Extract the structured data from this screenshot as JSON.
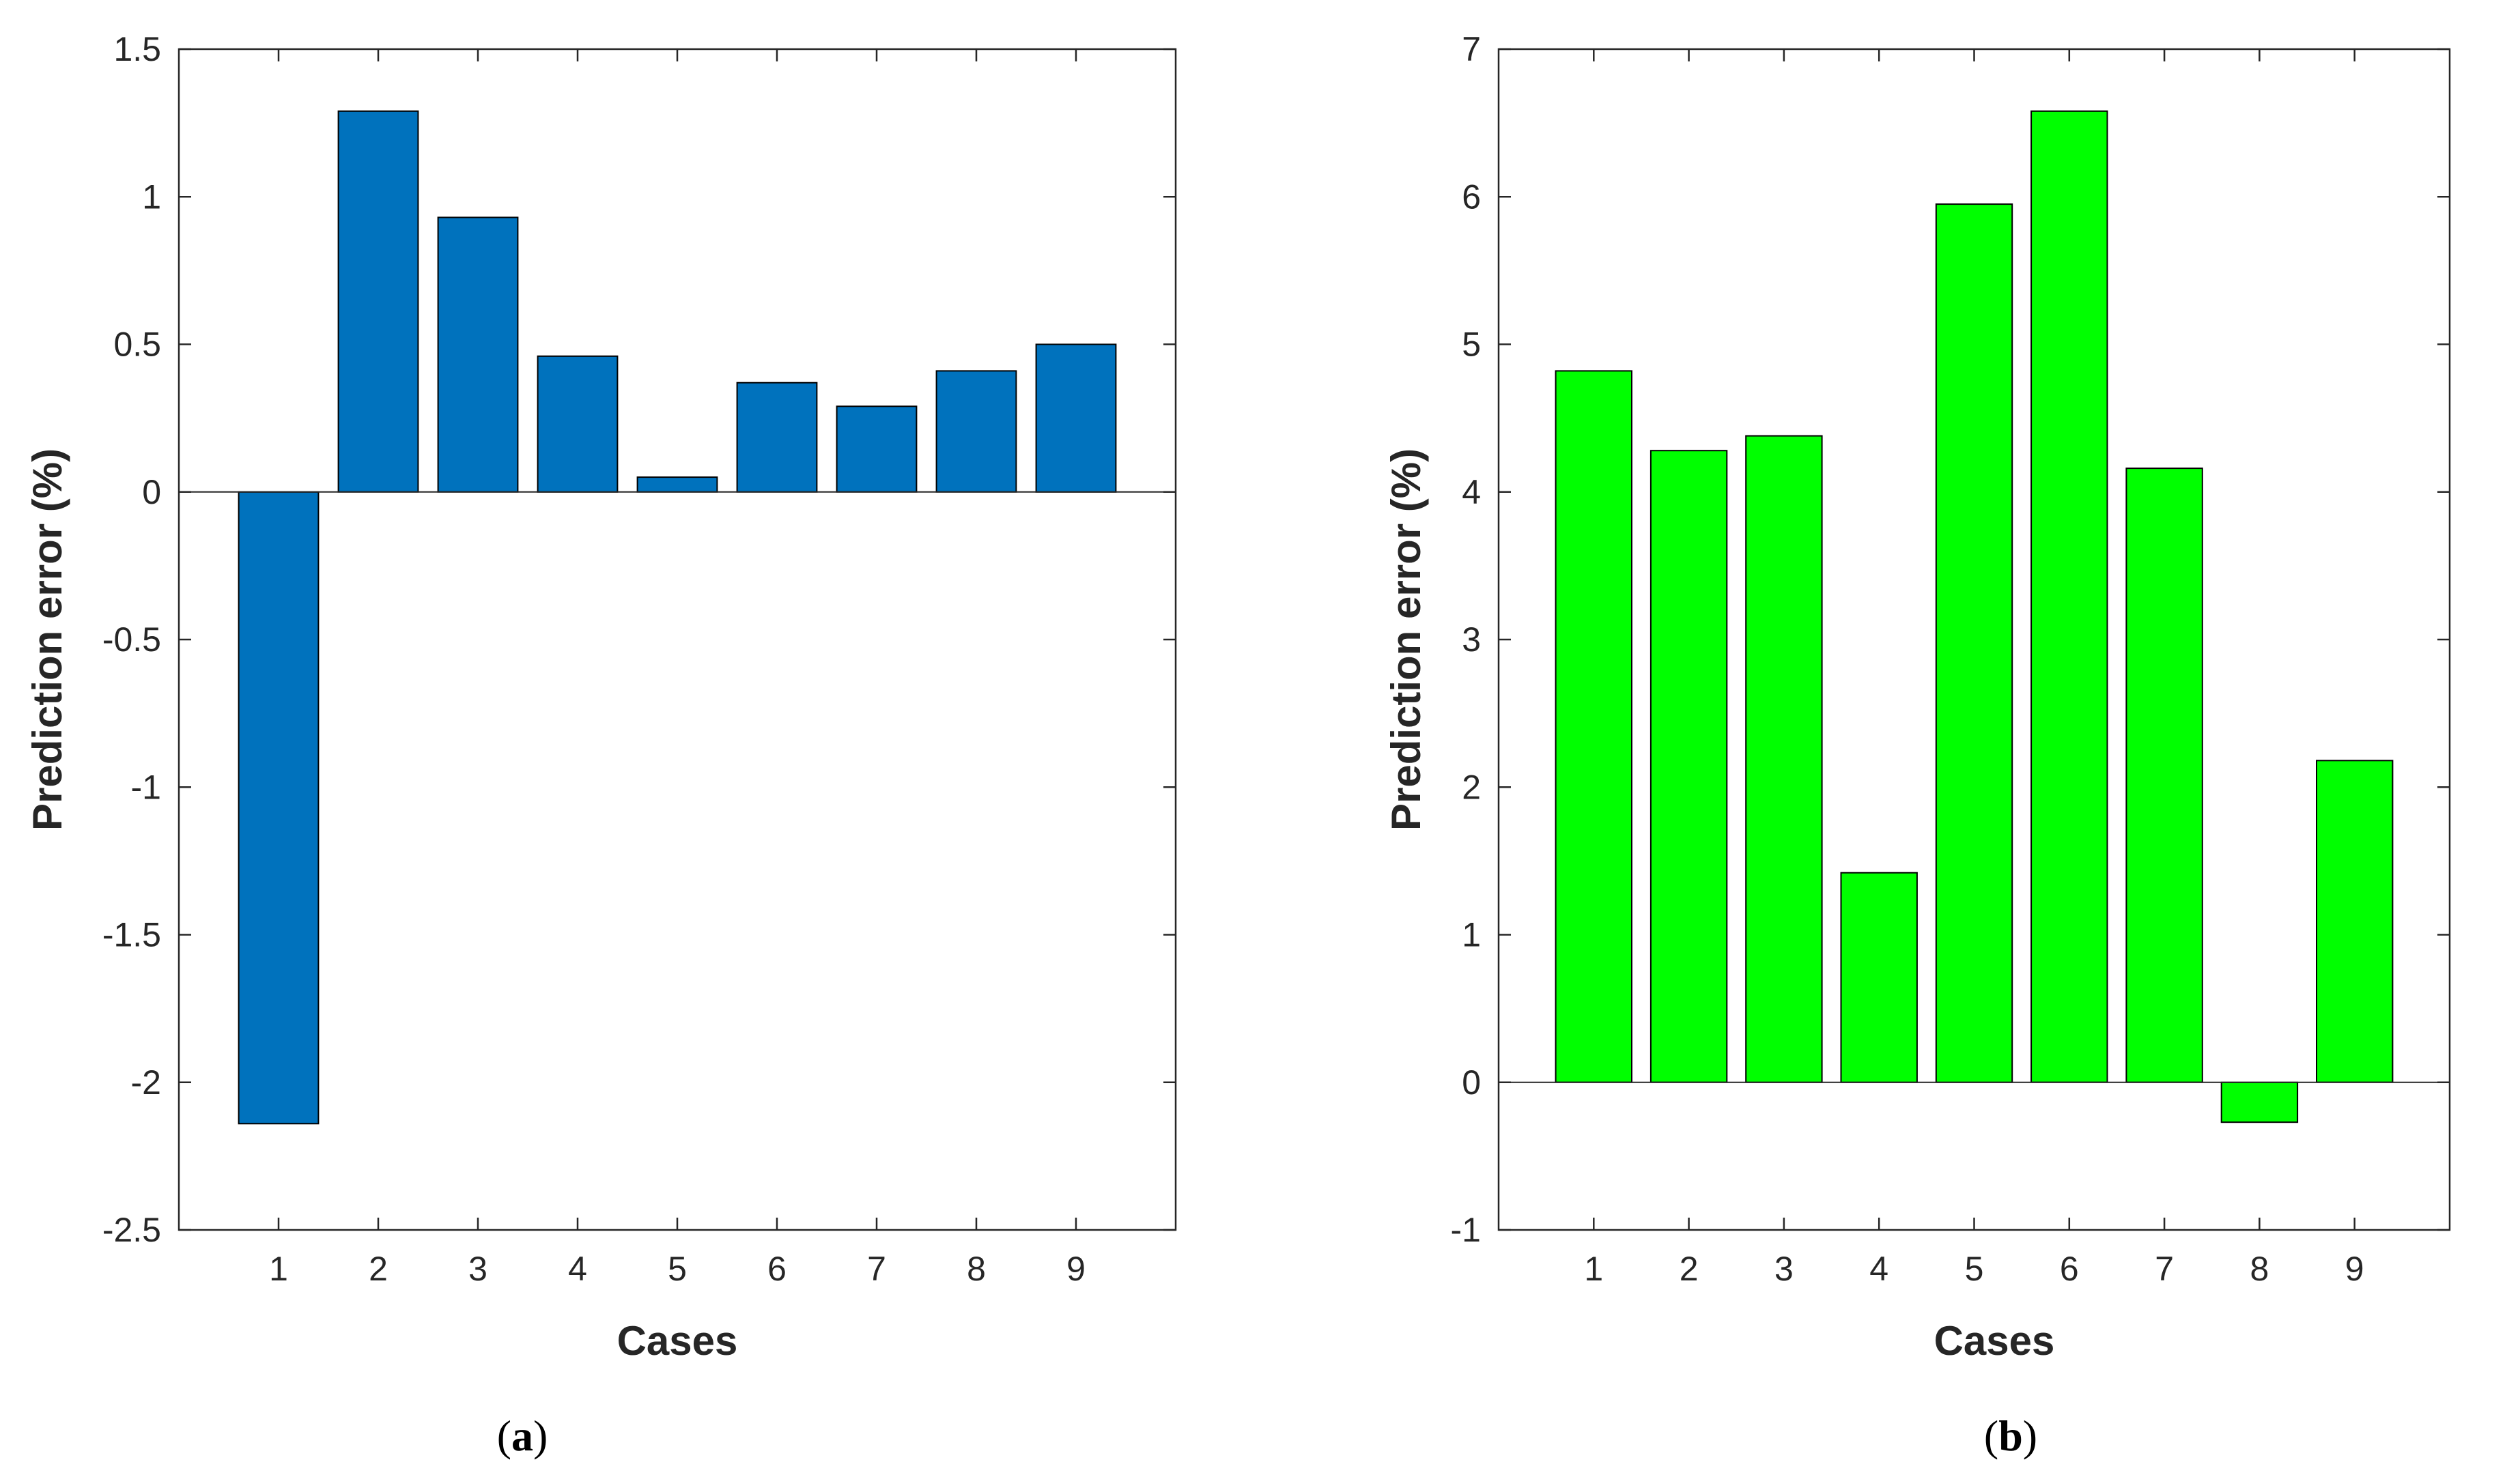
{
  "chart_data": [
    {
      "type": "bar",
      "panel_label": "a",
      "panel_label_open": "(",
      "panel_label_close": ")",
      "categories": [
        "1",
        "2",
        "3",
        "4",
        "5",
        "6",
        "7",
        "8",
        "9"
      ],
      "values": [
        -2.14,
        1.29,
        0.93,
        0.46,
        0.05,
        0.37,
        0.29,
        0.41,
        0.5
      ],
      "bar_color": "#0072BD",
      "xlabel": "Cases",
      "ylabel": "Prediction error (%)",
      "ylim": [
        -2.5,
        1.5
      ],
      "yticks": [
        -2.5,
        -2,
        -1.5,
        -1,
        -0.5,
        0,
        0.5,
        1,
        1.5
      ],
      "ytick_labels": [
        "-2.5",
        "-2",
        "-1.5",
        "-1",
        "-0.5",
        "0",
        "0.5",
        "1",
        "1.5"
      ],
      "xlim": [
        0,
        10
      ],
      "grid": false
    },
    {
      "type": "bar",
      "panel_label": "b",
      "panel_label_open": "(",
      "panel_label_close": ")",
      "categories": [
        "1",
        "2",
        "3",
        "4",
        "5",
        "6",
        "7",
        "8",
        "9"
      ],
      "values": [
        4.82,
        4.28,
        4.38,
        1.42,
        5.95,
        6.58,
        4.16,
        -0.27,
        2.18
      ],
      "bar_color": "#00FF00",
      "xlabel": "Cases",
      "ylabel": "Prediction error (%)",
      "ylim": [
        -1,
        7
      ],
      "yticks": [
        -1,
        0,
        1,
        2,
        3,
        4,
        5,
        6,
        7
      ],
      "ytick_labels": [
        "-1",
        "0",
        "1",
        "2",
        "3",
        "4",
        "5",
        "6",
        "7"
      ],
      "xlim": [
        0,
        10
      ],
      "grid": false
    }
  ]
}
